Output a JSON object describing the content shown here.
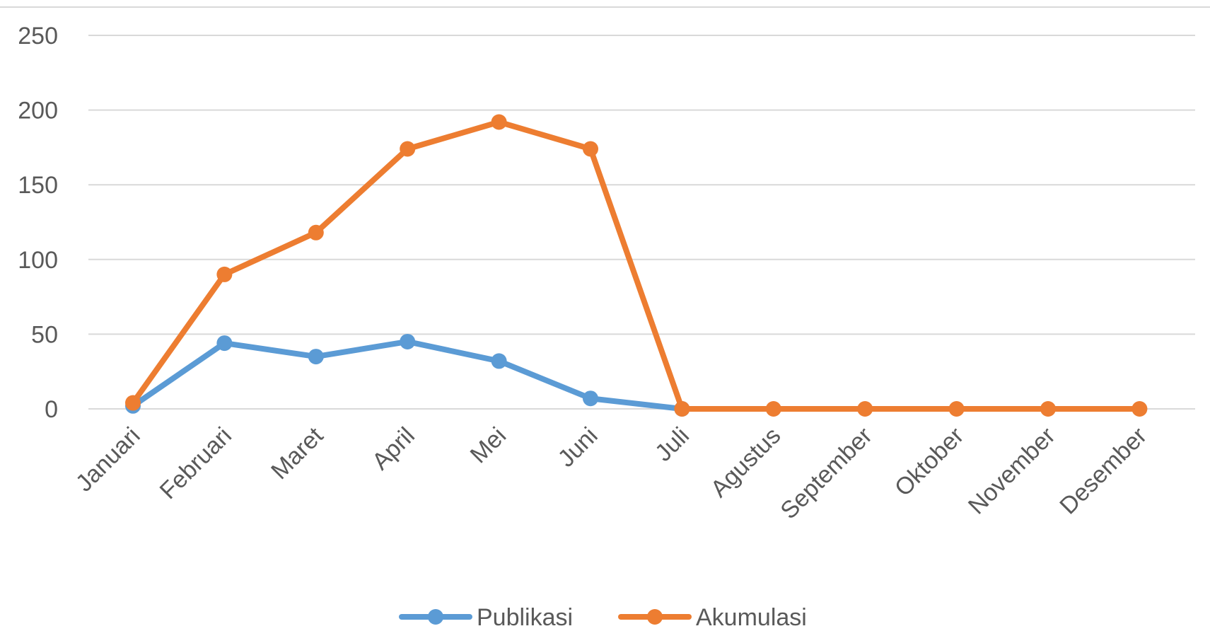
{
  "chart_data": {
    "type": "line",
    "categories": [
      "Januari",
      "Februari",
      "Maret",
      "April",
      "Mei",
      "Juni",
      "Juli",
      "Agustus",
      "September",
      "Oktober",
      "November",
      "Desember"
    ],
    "series": [
      {
        "name": "Publikasi",
        "color": "#5b9bd5",
        "values": [
          2,
          44,
          35,
          45,
          32,
          7,
          0,
          null,
          null,
          null,
          null,
          null
        ]
      },
      {
        "name": "Akumulasi",
        "color": "#ed7d31",
        "values": [
          4,
          90,
          118,
          174,
          192,
          174,
          0,
          0,
          0,
          0,
          0,
          0
        ]
      }
    ],
    "title": "",
    "xlabel": "",
    "ylabel": "",
    "ylim": [
      0,
      250
    ],
    "yticks": [
      0,
      50,
      100,
      150,
      200,
      250
    ],
    "grid": true,
    "legend_position": "bottom"
  }
}
